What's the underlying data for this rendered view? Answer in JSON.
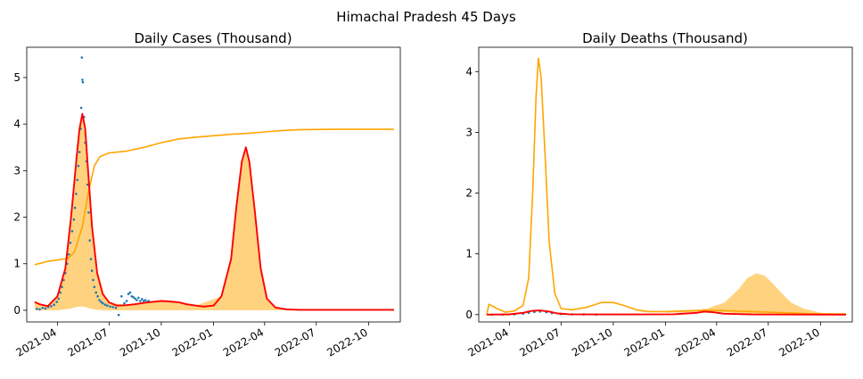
{
  "suptitle": "Himachal Pradesh 45 Days",
  "colors": {
    "scatter": "#1f77b4",
    "fit": "#ff0000",
    "envelope": "#ffa500",
    "band_fill": "#ffa500"
  },
  "chart_data": [
    {
      "type": "line",
      "title": "Daily Cases (Thousand)",
      "xlabel": "",
      "ylabel": "",
      "x_range": [
        "2021-02-06",
        "2022-11-26"
      ],
      "ylim": [
        -0.25,
        5.65
      ],
      "x_ticks": [
        "2021-04",
        "2021-07",
        "2021-10",
        "2022-01",
        "2022-04",
        "2022-07",
        "2022-10"
      ],
      "y_ticks": [
        0,
        1,
        2,
        3,
        4,
        5
      ],
      "grid": false,
      "series": [
        {
          "kind": "scatter",
          "x": [
            "2021-02-24",
            "2021-03-01",
            "2021-03-06",
            "2021-03-11",
            "2021-03-16",
            "2021-03-21",
            "2021-03-26",
            "2021-03-31",
            "2021-04-03",
            "2021-04-06",
            "2021-04-09",
            "2021-04-12",
            "2021-04-15",
            "2021-04-18",
            "2021-04-21",
            "2021-04-24",
            "2021-04-27",
            "2021-04-30",
            "2021-05-02",
            "2021-05-04",
            "2021-05-06",
            "2021-05-08",
            "2021-05-10",
            "2021-05-12",
            "2021-05-13",
            "2021-05-14",
            "2021-05-15",
            "2021-05-16",
            "2021-05-18",
            "2021-05-20",
            "2021-05-22",
            "2021-05-24",
            "2021-05-26",
            "2021-05-28",
            "2021-05-30",
            "2021-06-01",
            "2021-06-03",
            "2021-06-05",
            "2021-06-08",
            "2021-06-11",
            "2021-06-14",
            "2021-06-17",
            "2021-06-20",
            "2021-06-24",
            "2021-06-28",
            "2021-07-03",
            "2021-07-08",
            "2021-07-13",
            "2021-07-18",
            "2021-07-23",
            "2021-07-28",
            "2021-08-01",
            "2021-08-04",
            "2021-08-07",
            "2021-08-10",
            "2021-08-13",
            "2021-08-16",
            "2021-08-19",
            "2021-08-22",
            "2021-08-25",
            "2021-08-28",
            "2021-08-31",
            "2021-09-03",
            "2021-09-06",
            "2021-09-09"
          ],
          "values": [
            0.03,
            0.02,
            0.05,
            0.04,
            0.07,
            0.09,
            0.12,
            0.18,
            0.25,
            0.38,
            0.5,
            0.65,
            0.8,
            1.0,
            1.2,
            1.45,
            1.7,
            1.95,
            2.2,
            2.5,
            2.8,
            3.1,
            3.4,
            3.9,
            4.35,
            5.43,
            4.95,
            4.9,
            4.15,
            3.6,
            3.2,
            2.7,
            2.1,
            1.5,
            1.1,
            0.85,
            0.65,
            0.5,
            0.38,
            0.3,
            0.22,
            0.18,
            0.15,
            0.12,
            0.1,
            0.08,
            0.07,
            0.05,
            -0.1,
            0.3,
            0.15,
            0.2,
            0.35,
            0.38,
            0.3,
            0.28,
            0.25,
            0.22,
            0.27,
            0.2,
            0.24,
            0.2,
            0.22,
            0.18,
            0.2
          ]
        },
        {
          "kind": "line",
          "name": "",
          "color_key": "fit",
          "x": [
            "2021-02-20",
            "2021-03-01",
            "2021-03-15",
            "2021-04-01",
            "2021-04-15",
            "2021-04-25",
            "2021-05-05",
            "2021-05-10",
            "2021-05-15",
            "2021-05-20",
            "2021-05-25",
            "2021-06-01",
            "2021-06-10",
            "2021-06-20",
            "2021-07-01",
            "2021-07-15",
            "2021-08-01",
            "2021-08-15",
            "2021-09-01",
            "2021-09-15",
            "2021-10-01",
            "2021-10-15",
            "2021-11-01",
            "2021-11-15",
            "2021-12-01",
            "2021-12-15",
            "2022-01-01",
            "2022-01-15",
            "2022-02-01",
            "2022-02-10",
            "2022-02-20",
            "2022-02-27",
            "2022-03-05",
            "2022-03-15",
            "2022-03-25",
            "2022-04-05",
            "2022-04-20",
            "2022-05-10",
            "2022-06-01",
            "2022-08-01",
            "2022-10-01",
            "2022-11-15"
          ],
          "values": [
            0.18,
            0.13,
            0.09,
            0.3,
            0.9,
            2.0,
            3.3,
            3.9,
            4.22,
            3.9,
            3.0,
            1.8,
            0.8,
            0.35,
            0.17,
            0.1,
            0.11,
            0.13,
            0.16,
            0.18,
            0.2,
            0.19,
            0.17,
            0.13,
            0.1,
            0.08,
            0.1,
            0.3,
            1.1,
            2.2,
            3.2,
            3.5,
            3.2,
            2.1,
            0.9,
            0.25,
            0.06,
            0.02,
            0.01,
            0.01,
            0.01,
            0.01
          ]
        },
        {
          "kind": "line",
          "name": "",
          "color_key": "envelope",
          "x": [
            "2021-02-20",
            "2021-03-15",
            "2021-04-01",
            "2021-04-20",
            "2021-05-01",
            "2021-05-15",
            "2021-05-25",
            "2021-06-05",
            "2021-06-15",
            "2021-07-01",
            "2021-08-01",
            "2021-09-01",
            "2021-10-01",
            "2021-11-01",
            "2021-12-01",
            "2022-01-01",
            "2022-02-01",
            "2022-03-01",
            "2022-04-01",
            "2022-05-01",
            "2022-06-01",
            "2022-08-01",
            "2022-10-01",
            "2022-11-15"
          ],
          "values": [
            0.98,
            1.05,
            1.08,
            1.12,
            1.25,
            1.8,
            2.5,
            3.1,
            3.3,
            3.38,
            3.42,
            3.5,
            3.6,
            3.68,
            3.72,
            3.75,
            3.78,
            3.8,
            3.83,
            3.86,
            3.88,
            3.89,
            3.89,
            3.89
          ]
        },
        {
          "kind": "band",
          "name": "",
          "color_key": "band_fill",
          "x": [
            "2021-02-20",
            "2021-03-15",
            "2021-04-01",
            "2021-04-15",
            "2021-04-25",
            "2021-05-05",
            "2021-05-10",
            "2021-05-15",
            "2021-05-20",
            "2021-05-25",
            "2021-06-01",
            "2021-06-10",
            "2021-06-20",
            "2021-07-01",
            "2021-08-01",
            "2021-10-01",
            "2021-12-01",
            "2022-01-15",
            "2022-02-01",
            "2022-02-10",
            "2022-02-20",
            "2022-02-27",
            "2022-03-05",
            "2022-03-15",
            "2022-03-25",
            "2022-04-05",
            "2022-04-20",
            "2022-05-10",
            "2022-07-01",
            "2022-11-15"
          ],
          "lower": [
            0.0,
            0.0,
            0.0,
            0.02,
            0.04,
            0.07,
            0.08,
            0.08,
            0.07,
            0.05,
            0.03,
            0.01,
            0.0,
            0.0,
            0.0,
            0.0,
            0.0,
            0.0,
            0.0,
            0.0,
            0.0,
            0.0,
            0.0,
            0.0,
            0.0,
            0.0,
            0.0,
            0.0,
            0.0,
            0.0
          ],
          "upper": [
            0.18,
            0.09,
            0.3,
            0.9,
            2.0,
            3.3,
            3.9,
            4.22,
            3.9,
            3.0,
            1.8,
            0.8,
            0.35,
            0.17,
            0.11,
            0.2,
            0.1,
            0.3,
            1.1,
            2.2,
            3.2,
            3.5,
            3.2,
            2.1,
            0.9,
            0.25,
            0.06,
            0.02,
            0.01,
            0.01
          ]
        }
      ]
    },
    {
      "type": "line",
      "title": "Daily Deaths (Thousand)",
      "xlabel": "",
      "ylabel": "",
      "x_range": [
        "2021-02-06",
        "2022-11-26"
      ],
      "ylim": [
        -0.12,
        4.4
      ],
      "x_ticks": [
        "2021-04",
        "2021-07",
        "2021-10",
        "2022-01",
        "2022-04",
        "2022-07",
        "2022-10"
      ],
      "y_ticks": [
        0,
        1,
        2,
        3,
        4
      ],
      "grid": false,
      "series": [
        {
          "kind": "scatter",
          "x": [
            "2021-03-01",
            "2021-03-20",
            "2021-04-10",
            "2021-04-25",
            "2021-05-05",
            "2021-05-15",
            "2021-05-25",
            "2021-06-05",
            "2021-06-15",
            "2021-07-01",
            "2021-07-20",
            "2021-08-10",
            "2021-09-01"
          ],
          "values": [
            0.0,
            0.0,
            0.005,
            0.015,
            0.03,
            0.045,
            0.05,
            0.04,
            0.025,
            0.01,
            0.005,
            0.003,
            0.002
          ]
        },
        {
          "kind": "line",
          "name": "",
          "color_key": "fit",
          "x": [
            "2021-02-20",
            "2021-04-01",
            "2021-04-25",
            "2021-05-10",
            "2021-05-25",
            "2021-06-10",
            "2021-06-25",
            "2021-07-15",
            "2021-09-01",
            "2021-11-01",
            "2022-01-15",
            "2022-02-25",
            "2022-03-10",
            "2022-03-25",
            "2022-04-15",
            "2022-06-01",
            "2022-11-15"
          ],
          "values": [
            0.0,
            0.005,
            0.03,
            0.06,
            0.07,
            0.05,
            0.02,
            0.006,
            0.003,
            0.003,
            0.006,
            0.03,
            0.05,
            0.04,
            0.015,
            0.003,
            0.0
          ]
        },
        {
          "kind": "line",
          "name": "",
          "color_key": "envelope",
          "x": [
            "2021-02-20",
            "2021-02-24",
            "2021-03-10",
            "2021-03-25",
            "2021-04-10",
            "2021-04-25",
            "2021-05-05",
            "2021-05-12",
            "2021-05-18",
            "2021-05-22",
            "2021-05-27",
            "2021-06-03",
            "2021-06-10",
            "2021-06-20",
            "2021-07-01",
            "2021-07-20",
            "2021-08-15",
            "2021-09-10",
            "2021-10-01",
            "2021-10-20",
            "2021-11-10",
            "2021-12-01",
            "2022-01-01",
            "2022-02-01",
            "2022-03-01",
            "2022-04-01",
            "2022-05-01",
            "2022-06-01",
            "2022-07-01",
            "2022-08-01",
            "2022-09-01",
            "2022-10-01",
            "2022-11-15"
          ],
          "values": [
            0.0,
            0.17,
            0.1,
            0.04,
            0.06,
            0.15,
            0.6,
            2.0,
            3.6,
            4.22,
            3.9,
            2.6,
            1.2,
            0.35,
            0.1,
            0.08,
            0.12,
            0.2,
            0.2,
            0.15,
            0.08,
            0.05,
            0.05,
            0.06,
            0.07,
            0.07,
            0.06,
            0.05,
            0.04,
            0.03,
            0.02,
            0.01,
            0.01
          ]
        },
        {
          "kind": "band",
          "name": "",
          "color_key": "band_fill",
          "x": [
            "2022-01-01",
            "2022-02-15",
            "2022-03-15",
            "2022-04-15",
            "2022-05-10",
            "2022-05-25",
            "2022-06-10",
            "2022-06-25",
            "2022-07-10",
            "2022-07-25",
            "2022-08-10",
            "2022-09-01",
            "2022-10-01",
            "2022-11-15"
          ],
          "lower": [
            0.03,
            0.04,
            0.05,
            0.04,
            0.02,
            0.01,
            0.01,
            0.01,
            0.01,
            0.01,
            0.01,
            0.01,
            0.01,
            0.01
          ],
          "upper": [
            0.05,
            0.07,
            0.1,
            0.2,
            0.42,
            0.6,
            0.68,
            0.64,
            0.5,
            0.35,
            0.2,
            0.1,
            0.03,
            0.01
          ]
        }
      ]
    }
  ]
}
